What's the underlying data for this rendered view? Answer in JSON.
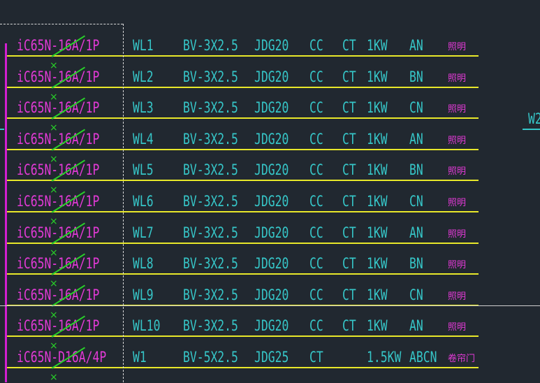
{
  "diagram": {
    "circuits": [
      {
        "breaker": "iC65N-16A/1P",
        "circuit": "WL1",
        "cable": "BV-3X2.5",
        "conduit": "JDG20",
        "lay1": "CC",
        "lay2": "CT",
        "power": "1KW",
        "phase": "AN",
        "load": "照明"
      },
      {
        "breaker": "iC65N-16A/1P",
        "circuit": "WL2",
        "cable": "BV-3X2.5",
        "conduit": "JDG20",
        "lay1": "CC",
        "lay2": "CT",
        "power": "1KW",
        "phase": "BN",
        "load": "照明"
      },
      {
        "breaker": "iC65N-16A/1P",
        "circuit": "WL3",
        "cable": "BV-3X2.5",
        "conduit": "JDG20",
        "lay1": "CC",
        "lay2": "CT",
        "power": "1KW",
        "phase": "CN",
        "load": "照明"
      },
      {
        "breaker": "iC65N-16A/1P",
        "circuit": "WL4",
        "cable": "BV-3X2.5",
        "conduit": "JDG20",
        "lay1": "CC",
        "lay2": "CT",
        "power": "1KW",
        "phase": "AN",
        "load": "照明"
      },
      {
        "breaker": "iC65N-16A/1P",
        "circuit": "WL5",
        "cable": "BV-3X2.5",
        "conduit": "JDG20",
        "lay1": "CC",
        "lay2": "CT",
        "power": "1KW",
        "phase": "BN",
        "load": "照明"
      },
      {
        "breaker": "iC65N-16A/1P",
        "circuit": "WL6",
        "cable": "BV-3X2.5",
        "conduit": "JDG20",
        "lay1": "CC",
        "lay2": "CT",
        "power": "1KW",
        "phase": "CN",
        "load": "照明"
      },
      {
        "breaker": "iC65N-16A/1P",
        "circuit": "WL7",
        "cable": "BV-3X2.5",
        "conduit": "JDG20",
        "lay1": "CC",
        "lay2": "CT",
        "power": "1KW",
        "phase": "AN",
        "load": "照明"
      },
      {
        "breaker": "iC65N-16A/1P",
        "circuit": "WL8",
        "cable": "BV-3X2.5",
        "conduit": "JDG20",
        "lay1": "CC",
        "lay2": "CT",
        "power": "1KW",
        "phase": "BN",
        "load": "照明"
      },
      {
        "breaker": "iC65N-16A/1P",
        "circuit": "WL9",
        "cable": "BV-3X2.5",
        "conduit": "JDG20",
        "lay1": "CC",
        "lay2": "CT",
        "power": "1KW",
        "phase": "CN",
        "load": "照明"
      },
      {
        "breaker": "iC65N-16A/1P",
        "circuit": "WL10",
        "cable": "BV-3X2.5",
        "conduit": "JDG20",
        "lay1": "CC",
        "lay2": "CT",
        "power": "1KW",
        "phase": "AN",
        "load": "照明"
      },
      {
        "breaker": "iC65N-D16A/4P",
        "circuit": "W1",
        "cable": "BV-5X2.5",
        "conduit": "JDG25",
        "lay1": "CT",
        "lay2": "",
        "power": "1.5KW",
        "phase": "ABCN",
        "load": "卷帘门"
      }
    ],
    "right_label": "W2",
    "colors": {
      "background": "#212830",
      "magenta": "#e23ad6",
      "cyan": "#36c6c8",
      "yellow": "#e8e82a",
      "green": "#28d228"
    }
  }
}
